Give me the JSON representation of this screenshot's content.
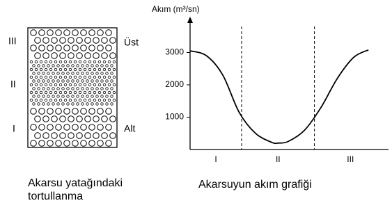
{
  "sediment": {
    "layers": [
      "III",
      "II",
      "I"
    ],
    "top_label": "Üst",
    "bottom_label": "Alt",
    "caption": [
      "Akarsu yatağındaki",
      "tortullanma"
    ]
  },
  "chart_data": {
    "type": "line",
    "ylabel": "Akım (m³/sn)",
    "caption": "Akarsuyun akım grafiği",
    "x": [
      0,
      1,
      2,
      3,
      4,
      5,
      5.4,
      6,
      7,
      8,
      9,
      10,
      10.9
    ],
    "values": [
      3050,
      2900,
      2300,
      1150,
      500,
      220,
      200,
      250,
      600,
      1300,
      2200,
      2850,
      3080
    ],
    "xlim": [
      0,
      12
    ],
    "ylim": [
      0,
      4000
    ],
    "yticks": [
      1000,
      2000,
      3000
    ],
    "dividers": [
      3.15,
      7.6
    ],
    "sections": [
      "I",
      "II",
      "III"
    ],
    "color": "#000"
  }
}
